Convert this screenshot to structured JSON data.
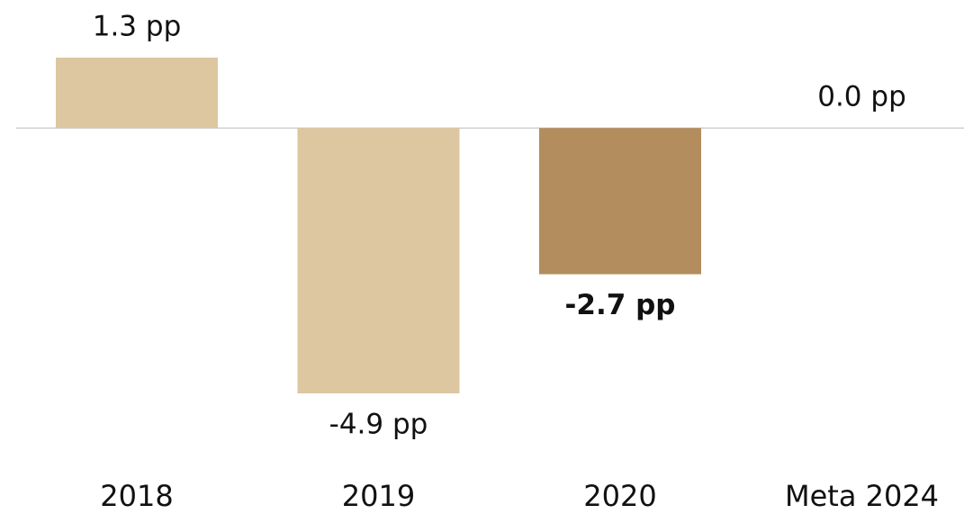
{
  "chart_data": {
    "type": "bar",
    "categories": [
      "2018",
      "2019",
      "2020",
      "Meta 2024"
    ],
    "values": [
      1.3,
      -4.9,
      -2.7,
      0.0
    ],
    "value_labels": [
      "1.3 pp",
      "-4.9 pp",
      "-2.7 pp",
      "0.0 pp"
    ],
    "colors": [
      "#dcc7a0",
      "#dcc7a0",
      "#b38d5e",
      "#dcc7a0"
    ],
    "bold_labels": [
      false,
      false,
      true,
      false
    ]
  }
}
